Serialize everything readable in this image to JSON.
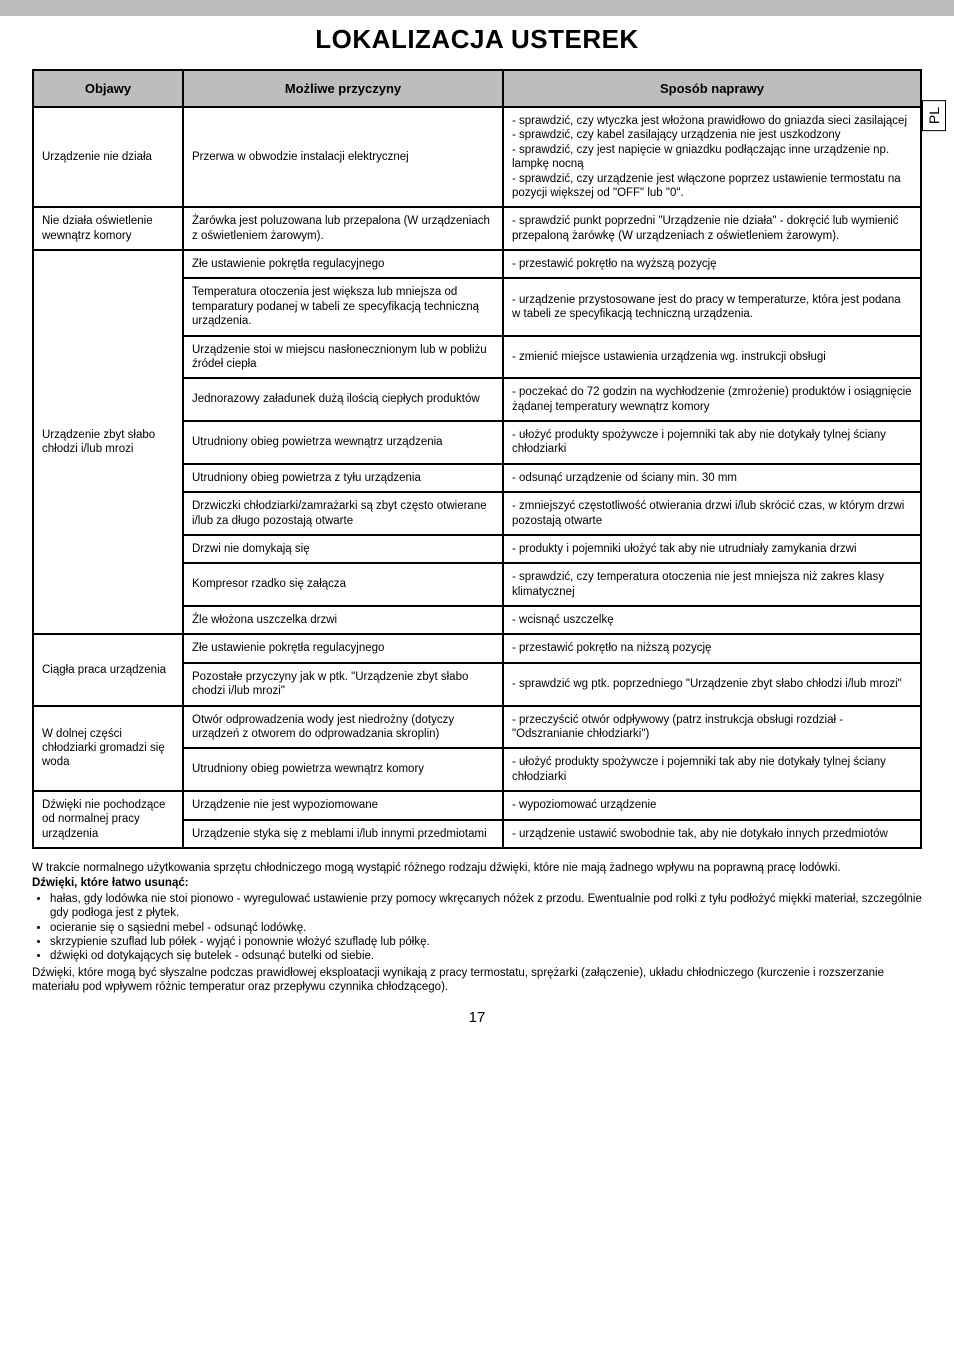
{
  "colors": {
    "page_bg": "#ffffff",
    "outer_bg": "#dddddd",
    "header_gray": "#bdbdbd",
    "border": "#000000",
    "text": "#000000"
  },
  "side_tab": "PL",
  "title": "LOKALIZACJA USTEREK",
  "table": {
    "headers": [
      "Objawy",
      "Możliwe przyczyny",
      "Sposób naprawy"
    ],
    "rows": [
      {
        "symptom": "Urządzenie nie działa",
        "parts": [
          {
            "cause": "Przerwa w obwodzie instalacji elektrycznej",
            "remedy": "- sprawdzić, czy wtyczka jest włożona prawidłowo do gniazda sieci zasilającej\n- sprawdzić, czy kabel zasilający urządzenia nie jest uszkodzony\n- sprawdzić, czy jest napięcie w gniazdku podłączając inne urządzenie np. lampkę nocną\n- sprawdzić, czy urządzenie jest włączone poprzez ustawienie termostatu na pozycji większej od \"OFF\" lub \"0\"."
          }
        ]
      },
      {
        "symptom": "Nie działa oświetlenie wewnątrz komory",
        "parts": [
          {
            "cause": "Żarówka jest poluzowana lub przepalona (W urządzeniach z oświetleniem żarowym).",
            "remedy": "- sprawdzić punkt poprzedni \"Urządzenie nie działa\" - dokręcić lub wymienić przepaloną żarówkę (W urządzeniach z oświetleniem żarowym)."
          }
        ]
      },
      {
        "symptom": "Urządzenie zbyt słabo chłodzi i/lub mrozi",
        "parts": [
          {
            "cause": "Złe ustawienie pokrętła regulacyjnego",
            "remedy": "- przestawić pokrętło na wyższą pozycję"
          },
          {
            "cause": "Temperatura otoczenia jest większa lub mniejsza od temparatury podanej w tabeli ze specyfikacją techniczną urządzenia.",
            "remedy": "- urządzenie przystosowane jest do pracy w temperaturze, która jest podana w tabeli ze specyfikacją techniczną urządzenia."
          },
          {
            "cause": "Urządzenie stoi w miejscu nasłonecznionym lub w pobliżu źródeł ciepła",
            "remedy": "- zmienić miejsce ustawienia urządzenia wg. instrukcji obsługi"
          },
          {
            "cause": "Jednorazowy załadunek dużą ilością ciepłych produktów",
            "remedy": "- poczekać do 72 godzin na wychłodzenie (zmrożenie) produktów i osiągnięcie żądanej temperatury wewnątrz komory"
          },
          {
            "cause": "Utrudniony obieg powietrza wewnątrz urządzenia",
            "remedy": "- ułożyć produkty spożywcze i pojemniki tak aby nie dotykały tylnej ściany chłodziarki"
          },
          {
            "cause": "Utrudniony obieg powietrza z tyłu urządzenia",
            "remedy": "- odsunąć urządzenie od ściany min. 30 mm"
          },
          {
            "cause": "Drzwiczki chłodziarki/zamrażarki są zbyt często otwierane i/lub za długo pozostają otwarte",
            "remedy": "- zmniejszyć częstotliwość otwierania drzwi i/lub skrócić czas, w którym drzwi pozostają otwarte"
          },
          {
            "cause": "Drzwi nie domykają się",
            "remedy": "- produkty i pojemniki ułożyć tak aby nie utrudniały zamykania drzwi"
          },
          {
            "cause": "Kompresor rzadko się załącza",
            "remedy": "- sprawdzić, czy temperatura otoczenia nie jest mniejsza niż zakres klasy klimatycznej"
          },
          {
            "cause": "Źle włożona uszczelka drzwi",
            "remedy": "- wcisnąć uszczelkę"
          }
        ]
      },
      {
        "symptom": "Ciągła praca urządzenia",
        "parts": [
          {
            "cause": "Złe ustawienie pokrętła regulacyjnego",
            "remedy": "- przestawić pokrętło na niższą pozycję"
          },
          {
            "cause": "Pozostałe przyczyny jak w ptk. \"Urządzenie zbyt słabo chodzi i/lub mrozi\"",
            "remedy": "- sprawdzić wg ptk. poprzedniego \"Urządzenie zbyt słabo chłodzi i/lub mrozi\""
          }
        ]
      },
      {
        "symptom": "W dolnej części chłodziarki gromadzi się woda",
        "parts": [
          {
            "cause": "Otwór odprowadzenia wody jest niedrożny (dotyczy urządzeń z otworem do odprowadzania skroplin)",
            "remedy": "- przeczyścić otwór odpływowy (patrz instrukcja obsługi rozdział - \"Odszranianie chłodziarki\")"
          },
          {
            "cause": "Utrudniony obieg powietrza wewnątrz komory",
            "remedy": "- ułożyć produkty spożywcze i pojemniki tak aby nie dotykały tylnej ściany chłodziarki"
          }
        ]
      },
      {
        "symptom": "Dźwięki nie pochodzące od normalnej pracy urządzenia",
        "parts": [
          {
            "cause": "Urządzenie nie jest wypoziomowane",
            "remedy": "- wypoziomować urządzenie"
          },
          {
            "cause": "Urządzenie styka się z meblami i/lub innymi przedmiotami",
            "remedy": "- urządzenie ustawić swobodnie tak, aby nie dotykało innych przedmiotów"
          }
        ]
      }
    ]
  },
  "footnotes": {
    "intro": "W trakcie normalnego użytkowania sprzętu chłodniczego mogą wystąpić różnego rodzaju dźwięki, które nie mają żadnego wpływu na poprawną pracę lodówki.",
    "heading": "Dźwięki, które łatwo usunąć:",
    "bullets": [
      "hałas, gdy lodówka nie stoi pionowo - wyregulować ustawienie przy pomocy wkręcanych nóżek z przodu. Ewentualnie pod rolki z tyłu podłożyć miękki materiał, szczególnie gdy podłoga jest z płytek.",
      "ocieranie się o sąsiedni mebel - odsunąć lodówkę.",
      "skrzypienie szuflad lub półek - wyjąć i ponownie włożyć szufladę lub półkę.",
      "dźwięki od dotykających się butelek - odsunąć butelki od siebie."
    ],
    "outro": "Dźwięki, które mogą być słyszalne podczas prawidłowej eksploatacji wynikają z pracy termostatu, sprężarki (załączenie), układu chłodniczego (kurczenie i rozszerzanie materiału pod wpływem różnic temperatur oraz przepływu czynnika chłodzącego)."
  },
  "page_number": "17"
}
